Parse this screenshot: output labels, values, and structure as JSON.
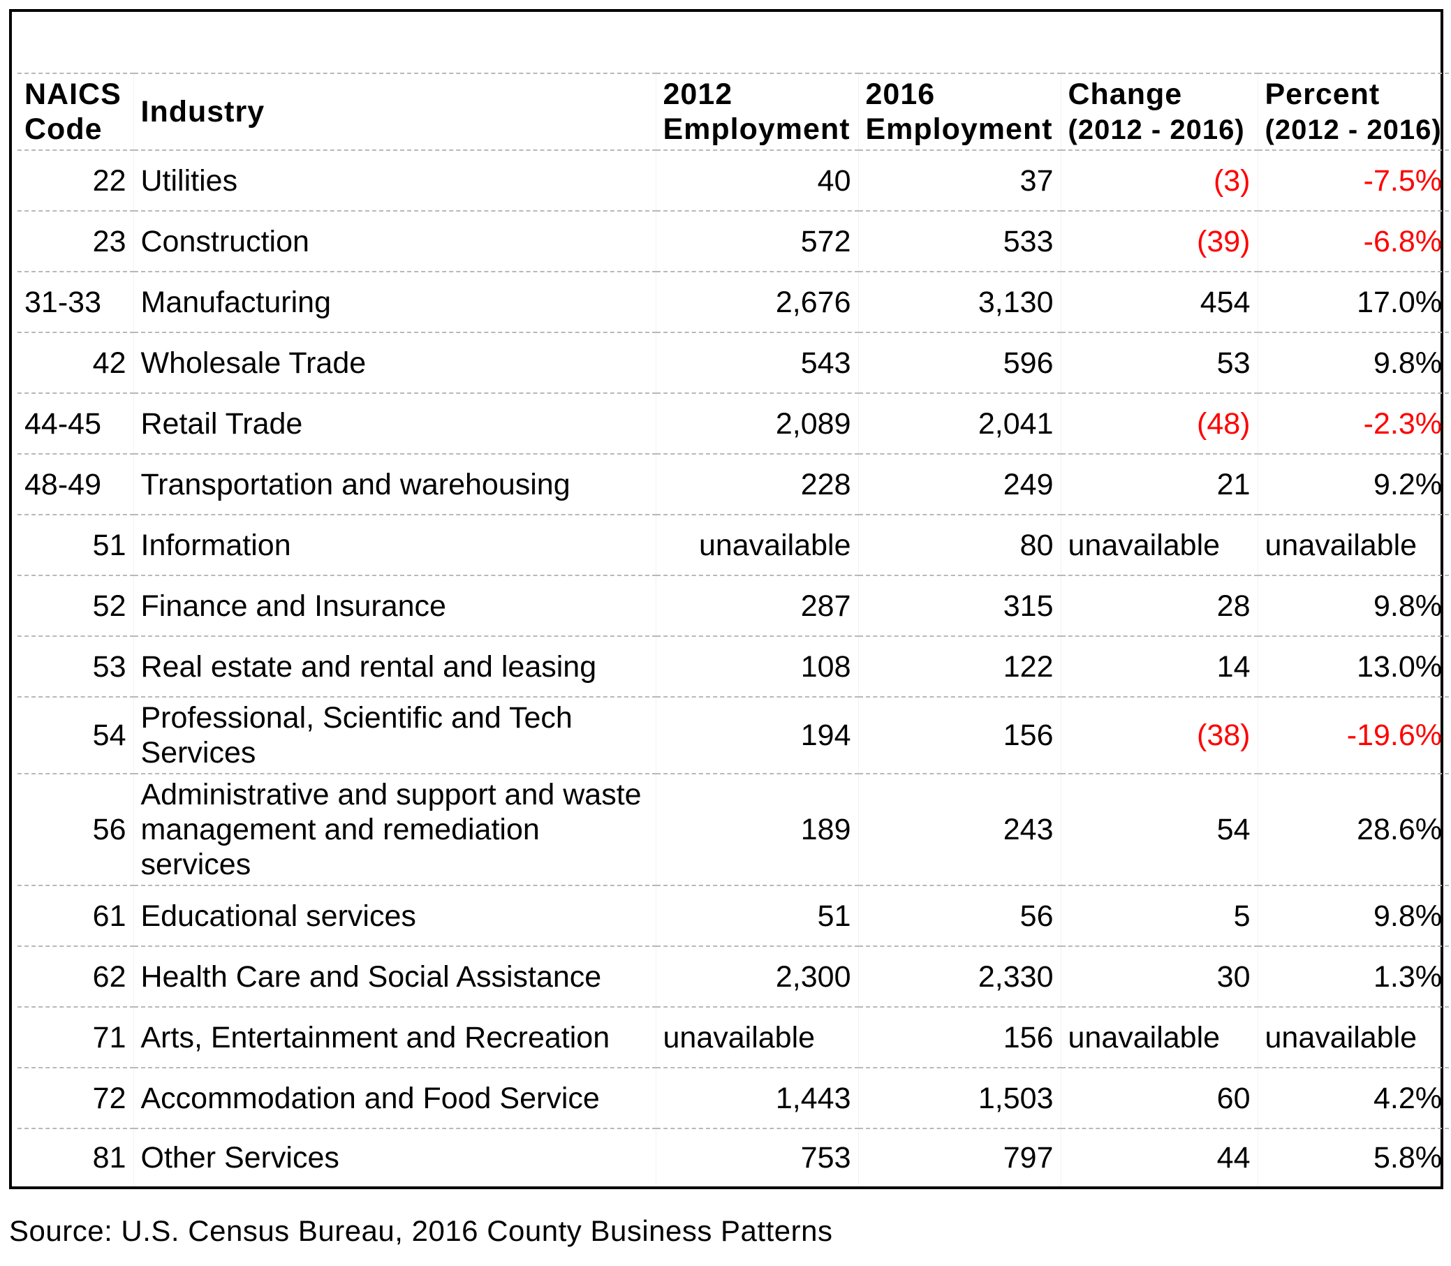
{
  "headers": {
    "code_line1": "NAICS",
    "code_line2": "Code",
    "industry": "Industry",
    "emp2012_line1": "2012",
    "emp2012_line2": "Employment",
    "emp2016_line1": "2016",
    "emp2016_line2": "Employment",
    "change_line1": "Change",
    "change_line2": "(2012 - 2016)",
    "percent_line1": "Percent",
    "percent_line2": "(2012 - 2016)"
  },
  "rows": [
    {
      "code": "22",
      "industry": "Utilities",
      "emp2012": "40",
      "emp2016": "37",
      "change": "(3)",
      "percent": "-7.5%"
    },
    {
      "code": "23",
      "industry": "Construction",
      "emp2012": "572",
      "emp2016": "533",
      "change": "(39)",
      "percent": "-6.8%"
    },
    {
      "code": "31-33",
      "industry": "Manufacturing",
      "emp2012": "2,676",
      "emp2016": "3,130",
      "change": "454",
      "percent": "17.0%"
    },
    {
      "code": "42",
      "industry": "Wholesale Trade",
      "emp2012": "543",
      "emp2016": "596",
      "change": "53",
      "percent": "9.8%"
    },
    {
      "code": "44-45",
      "industry": "Retail Trade",
      "emp2012": "2,089",
      "emp2016": "2,041",
      "change": "(48)",
      "percent": "-2.3%"
    },
    {
      "code": "48-49",
      "industry": "Transportation and warehousing",
      "emp2012": "228",
      "emp2016": "249",
      "change": "21",
      "percent": "9.2%"
    },
    {
      "code": "51",
      "industry": "Information",
      "emp2012": "unavailable",
      "emp2016": "80",
      "change": "unavailable",
      "percent": "unavailable"
    },
    {
      "code": "52",
      "industry": "Finance and Insurance",
      "emp2012": "287",
      "emp2016": "315",
      "change": "28",
      "percent": "9.8%"
    },
    {
      "code": "53",
      "industry": "Real estate and rental and leasing",
      "emp2012": "108",
      "emp2016": "122",
      "change": "14",
      "percent": "13.0%"
    },
    {
      "code": "54",
      "industry": "Professional, Scientific and Tech Services",
      "emp2012": "194",
      "emp2016": "156",
      "change": "(38)",
      "percent": "-19.6%"
    },
    {
      "code": "56",
      "industry": "Administrative and support and waste management and remediation services",
      "emp2012": "189",
      "emp2016": "243",
      "change": "54",
      "percent": "28.6%"
    },
    {
      "code": "61",
      "industry": "Educational services",
      "emp2012": "51",
      "emp2016": "56",
      "change": "5",
      "percent": "9.8%"
    },
    {
      "code": "62",
      "industry": "Health Care and Social Assistance",
      "emp2012": "2,300",
      "emp2016": "2,330",
      "change": "30",
      "percent": "1.3%"
    },
    {
      "code": "71",
      "industry": "Arts, Entertainment and Recreation",
      "emp2012": "unavailable",
      "emp2016": "156",
      "change": "unavailable",
      "percent": "unavailable"
    },
    {
      "code": "72",
      "industry": "Accommodation and Food Service",
      "emp2012": "1,443",
      "emp2016": "1,503",
      "change": "60",
      "percent": "4.2%"
    },
    {
      "code": "81",
      "industry": "Other Services",
      "emp2012": "753",
      "emp2016": "797",
      "change": "44",
      "percent": "5.8%"
    }
  ],
  "source": "Source: U.S. Census Bureau, 2016 County Business Patterns",
  "colors": {
    "negative": "#ff0000",
    "text": "#000000",
    "rule": "#b8b8b8"
  }
}
